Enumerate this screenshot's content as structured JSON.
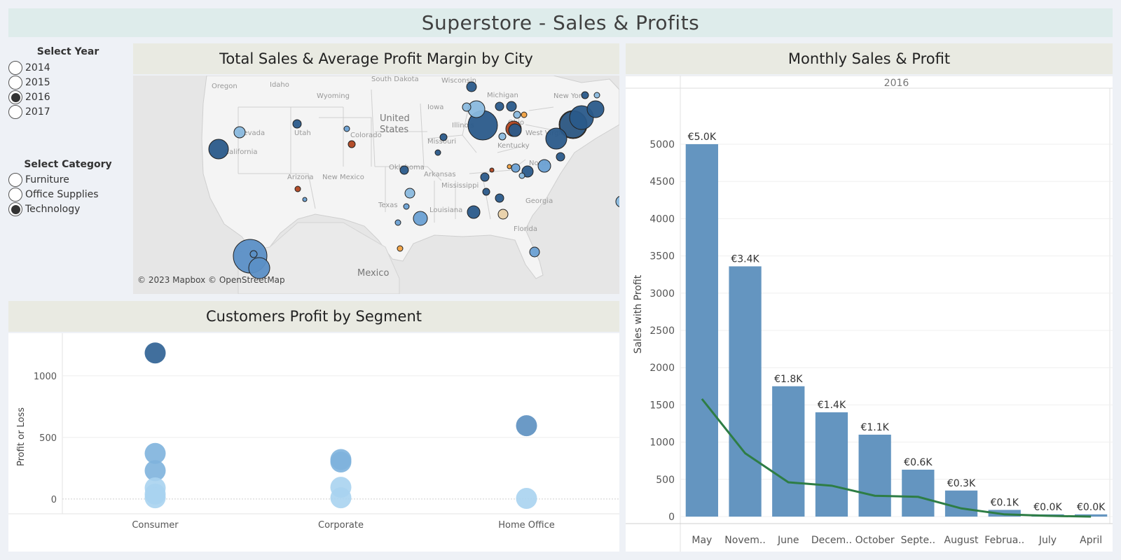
{
  "header": {
    "title": "Superstore - Sales & Profits"
  },
  "filters": {
    "year": {
      "label": "Select Year",
      "options": [
        "2014",
        "2015",
        "2016",
        "2017"
      ],
      "selected": "2016"
    },
    "category": {
      "label": "Select Category",
      "options": [
        "Furniture",
        "Office Supplies",
        "Technology"
      ],
      "selected": "Technology"
    }
  },
  "map": {
    "title": "Total Sales & Average Profit Margin by City",
    "attribution": "© 2023 Mapbox © OpenStreetMap",
    "labels": [
      "Oregon",
      "Idaho",
      "Wyoming",
      "South Dakota",
      "Wisconsin",
      "Michigan",
      "New York",
      "Iowa",
      "United",
      "States",
      "Nevada",
      "Utah",
      "Colorado",
      "Illinois",
      "Ohio",
      "West Virginia",
      "Kentucky",
      "California",
      "Missouri",
      "Oklahoma",
      "Arkansas",
      "Arizona",
      "New Mexico",
      "Mississippi",
      "North",
      "Georgia",
      "Texas",
      "Louisiana",
      "Florida",
      "Mexico"
    ]
  },
  "segment": {
    "title": "Customers Profit by Segment",
    "y_label": "Profit or Loss"
  },
  "monthly": {
    "title": "Monthly Sales & Profit",
    "panel_header": "2016",
    "y_label": "Sales with Profit"
  },
  "colors": {
    "bar": "#6495c0",
    "profit_line": "#2e7d45",
    "dark_blue": "#2a5a8a",
    "light_blue": "#a8d2ef",
    "orange": "#f0a040",
    "red_brown": "#b04520",
    "title_bg": "#deeceb",
    "panel_title_bg": "#e9eae2"
  },
  "chart_data": [
    {
      "type": "bar",
      "title": "Monthly Sales & Profit",
      "facet": "2016",
      "ylabel": "Sales with Profit",
      "categories": [
        "May",
        "Novem..",
        "June",
        "Decem..",
        "October",
        "Septe..",
        "August",
        "Februa..",
        "July",
        "April"
      ],
      "series": [
        {
          "values": [
            5000,
            3360,
            1750,
            1400,
            1100,
            630,
            350,
            90,
            30,
            30
          ],
          "data_labels": [
            "€5.0K",
            "€3.4K",
            "€1.8K",
            "€1.4K",
            "€1.1K",
            "€0.6K",
            "€0.3K",
            "€0.1K",
            "€0.0K",
            "€0.0K"
          ]
        },
        {
          "type": "line",
          "values": [
            1580,
            850,
            460,
            415,
            280,
            265,
            110,
            30,
            10,
            0
          ]
        }
      ],
      "yticks": [
        0,
        500,
        1000,
        1500,
        2000,
        2500,
        3000,
        3500,
        4000,
        4500,
        5000
      ],
      "ylim": [
        0,
        5620
      ]
    },
    {
      "type": "scatter",
      "title": "Customers Profit by Segment",
      "ylabel": "Profit or Loss",
      "categories": [
        "Consumer",
        "Corporate",
        "Home Office"
      ],
      "points": [
        {
          "segment": "Consumer",
          "y": 1185,
          "shade": "dark"
        },
        {
          "segment": "Consumer",
          "y": 370,
          "shade": "medium"
        },
        {
          "segment": "Consumer",
          "y": 230,
          "shade": "medium"
        },
        {
          "segment": "Consumer",
          "y": 90,
          "shade": "light"
        },
        {
          "segment": "Consumer",
          "y": 40,
          "shade": "light"
        },
        {
          "segment": "Consumer",
          "y": 10,
          "shade": "light"
        },
        {
          "segment": "Corporate",
          "y": 320,
          "shade": "medium"
        },
        {
          "segment": "Corporate",
          "y": 300,
          "shade": "medium"
        },
        {
          "segment": "Corporate",
          "y": 95,
          "shade": "light"
        },
        {
          "segment": "Corporate",
          "y": 10,
          "shade": "light"
        },
        {
          "segment": "Home Office",
          "y": 595,
          "shade": "medium-dark"
        },
        {
          "segment": "Home Office",
          "y": 5,
          "shade": "light"
        }
      ],
      "yticks": [
        0,
        500,
        1000
      ],
      "ylim": [
        -120,
        1300
      ]
    }
  ]
}
